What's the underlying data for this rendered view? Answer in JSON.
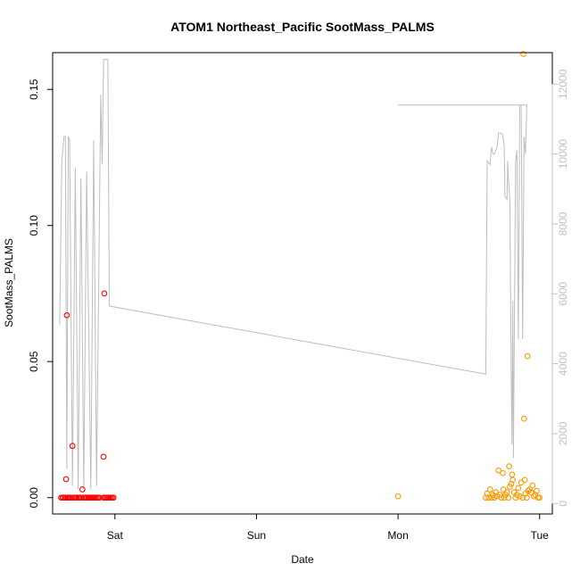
{
  "chart_data": {
    "type": "scatter",
    "title": "ATOM1 Northeast_Pacific SootMass_PALMS",
    "xlabel": "Date",
    "ylabel": "SootMass_PALMS",
    "x_ticks": [
      "Sat",
      "Sun",
      "Mon",
      "Tue"
    ],
    "x_tick_values_days": [
      0,
      1,
      2,
      3
    ],
    "xlim_days": [
      -0.44,
      3.09
    ],
    "ylim": [
      -0.006,
      0.1635
    ],
    "y_ticks": [
      0.0,
      0.05,
      0.1,
      0.15
    ],
    "y_tick_labels": [
      "0.00",
      "0.05",
      "0.10",
      "0.15"
    ],
    "y2lim": [
      -300,
      12900
    ],
    "y2_ticks": [
      0,
      2000,
      4000,
      6000,
      8000,
      10000,
      12000
    ],
    "y2_tick_labels": [
      "0",
      "2000",
      "4000",
      "6000",
      "8000",
      "10000",
      "12000"
    ],
    "grid": false,
    "colors": {
      "points_red": "#ff0000",
      "points_orange": "#ff9900",
      "altitude_line": "#bebebe",
      "frame": "#000000",
      "right_axis": "#c0c0c0"
    },
    "series": [
      {
        "color": "red",
        "points": [
          [
            -0.38,
            0
          ],
          [
            -0.37,
            0
          ],
          [
            -0.36,
            0
          ],
          [
            -0.35,
            0
          ],
          [
            -0.345,
            0.0068
          ],
          [
            -0.34,
            0.067
          ],
          [
            -0.335,
            0
          ],
          [
            -0.33,
            0
          ],
          [
            -0.32,
            0
          ],
          [
            -0.31,
            0
          ],
          [
            -0.3,
            0.019
          ],
          [
            -0.29,
            0
          ],
          [
            -0.28,
            0
          ],
          [
            -0.27,
            0
          ],
          [
            -0.26,
            0
          ],
          [
            -0.25,
            0
          ],
          [
            -0.24,
            0
          ],
          [
            -0.23,
            0.003
          ],
          [
            -0.22,
            0
          ],
          [
            -0.21,
            0
          ],
          [
            -0.2,
            0
          ],
          [
            -0.19,
            0
          ],
          [
            -0.18,
            0
          ],
          [
            -0.17,
            0
          ],
          [
            -0.16,
            0
          ],
          [
            -0.15,
            0
          ],
          [
            -0.14,
            0
          ],
          [
            -0.13,
            0
          ],
          [
            -0.12,
            0
          ],
          [
            -0.11,
            0
          ],
          [
            -0.08,
            0
          ],
          [
            -0.075,
            0.075
          ],
          [
            -0.08,
            0.015
          ],
          [
            -0.07,
            0
          ],
          [
            -0.06,
            0
          ],
          [
            -0.05,
            0
          ],
          [
            -0.04,
            0
          ],
          [
            -0.03,
            0
          ],
          [
            -0.02,
            0
          ],
          [
            -0.01,
            0
          ]
        ]
      },
      {
        "color": "orange",
        "points": [
          [
            2.0,
            0.0005
          ],
          [
            2.62,
            0
          ],
          [
            2.63,
            0.0015
          ],
          [
            2.64,
            0
          ],
          [
            2.65,
            0.003
          ],
          [
            2.66,
            0
          ],
          [
            2.67,
            0.001
          ],
          [
            2.68,
            0
          ],
          [
            2.69,
            0.002
          ],
          [
            2.7,
            0.0005
          ],
          [
            2.71,
            0.01
          ],
          [
            2.72,
            0.001
          ],
          [
            2.73,
            0
          ],
          [
            2.74,
            0.009
          ],
          [
            2.745,
            0.003
          ],
          [
            2.75,
            0
          ],
          [
            2.76,
            0.001
          ],
          [
            2.77,
            0.002
          ],
          [
            2.78,
            0
          ],
          [
            2.785,
            0.0115
          ],
          [
            2.79,
            0.004
          ],
          [
            2.8,
            0.005
          ],
          [
            2.805,
            0.0085
          ],
          [
            2.81,
            0.0065
          ],
          [
            2.82,
            0.002
          ],
          [
            2.83,
            0
          ],
          [
            2.84,
            0.001
          ],
          [
            2.85,
            0.0035
          ],
          [
            2.86,
            0.0005
          ],
          [
            2.87,
            0.0055
          ],
          [
            2.88,
            0
          ],
          [
            2.885,
            0.163
          ],
          [
            2.89,
            0.029
          ],
          [
            2.895,
            0.0065
          ],
          [
            2.9,
            0.0015
          ],
          [
            2.91,
            0
          ],
          [
            2.915,
            0.052
          ],
          [
            2.92,
            0.0025
          ],
          [
            2.93,
            0.003
          ],
          [
            2.94,
            0.002
          ],
          [
            2.95,
            0.0045
          ],
          [
            2.96,
            0.0005
          ],
          [
            2.97,
            0.001
          ],
          [
            2.98,
            0.0025
          ],
          [
            2.99,
            0
          ],
          [
            3.0,
            0
          ]
        ]
      },
      {
        "name": "altitude",
        "axis": "right",
        "color": "gray",
        "points": [
          [
            -0.39,
            5100
          ],
          [
            -0.375,
            9800
          ],
          [
            -0.36,
            10500
          ],
          [
            -0.35,
            10500
          ],
          [
            -0.34,
            1000
          ],
          [
            -0.33,
            10500
          ],
          [
            -0.32,
            10400
          ],
          [
            -0.3,
            500
          ],
          [
            -0.28,
            9600
          ],
          [
            -0.26,
            400
          ],
          [
            -0.24,
            9300
          ],
          [
            -0.22,
            400
          ],
          [
            -0.2,
            9500
          ],
          [
            -0.17,
            400
          ],
          [
            -0.15,
            10400
          ],
          [
            -0.13,
            500
          ],
          [
            -0.1,
            11700
          ],
          [
            -0.09,
            9700
          ],
          [
            -0.08,
            12700
          ],
          [
            -0.05,
            12700
          ],
          [
            -0.04,
            5650
          ],
          [
            2.62,
            3700
          ],
          [
            2.63,
            9800
          ],
          [
            2.65,
            9700
          ],
          [
            2.66,
            10200
          ],
          [
            2.67,
            10000
          ],
          [
            2.68,
            10000
          ],
          [
            2.7,
            10200
          ],
          [
            2.71,
            10600
          ],
          [
            2.73,
            10600
          ],
          [
            2.74,
            10550
          ],
          [
            2.75,
            10200
          ],
          [
            2.755,
            8800
          ],
          [
            2.77,
            8700
          ],
          [
            2.775,
            9800
          ],
          [
            2.78,
            9300
          ],
          [
            2.79,
            8700
          ],
          [
            2.8,
            3400
          ],
          [
            2.805,
            1700
          ],
          [
            2.81,
            5800
          ],
          [
            2.815,
            1300
          ],
          [
            2.83,
            9800
          ],
          [
            2.84,
            10100
          ],
          [
            2.85,
            4700
          ],
          [
            2.86,
            11400
          ],
          [
            2.87,
            11400
          ],
          [
            2.88,
            4700
          ],
          [
            2.89,
            10500
          ],
          [
            2.9,
            10000
          ],
          [
            2.91,
            11400
          ],
          [
            2.0,
            11400
          ]
        ]
      }
    ]
  }
}
